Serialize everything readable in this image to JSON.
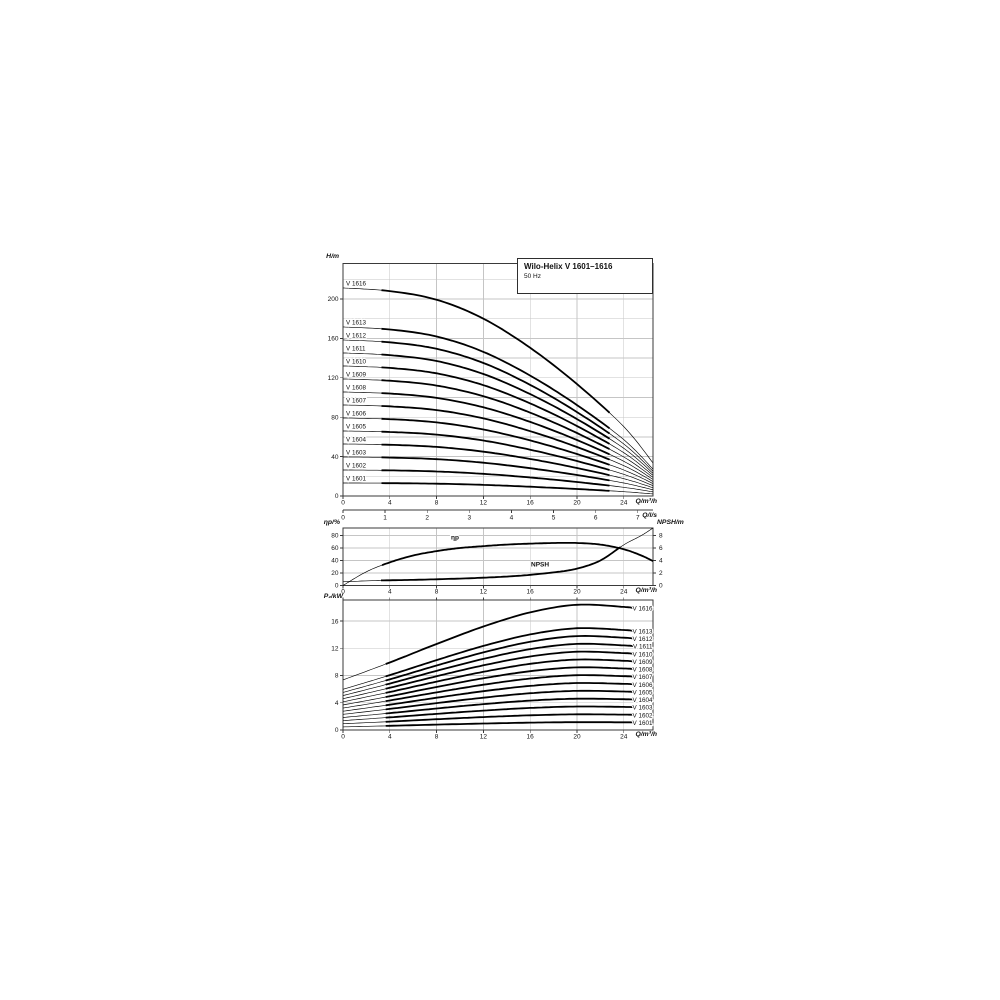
{
  "page": {
    "background": "#ffffff"
  },
  "colors": {
    "curve": "#000000",
    "grid": "#c5c5c5",
    "frame": "#3a3a3a",
    "text": "#111111"
  },
  "title_box": {
    "title": "Wilo-Helix V 1601–1616",
    "subtitle": "50 Hz"
  },
  "chart_data": [
    {
      "type": "line",
      "name": "head-vs-flow",
      "title": "Wilo-Helix V 1601–1616",
      "subtitle": "50 Hz",
      "xlabel": "Q/m³/h",
      "x2label": "Q/l/s",
      "ylabel": "H/m",
      "xlim": [
        0,
        26.5
      ],
      "ylim": [
        0,
        236
      ],
      "xticks": [
        0,
        4,
        8,
        12,
        16,
        20,
        24
      ],
      "x2ticks": [
        0,
        1,
        2,
        3,
        4,
        5,
        6,
        7
      ],
      "yticks": [
        0,
        40,
        80,
        120,
        160,
        200
      ],
      "ygrid_step": 20,
      "grid": true,
      "legend_position": "left-inline",
      "x": [
        0,
        4,
        8,
        12,
        16,
        20,
        24,
        26.5
      ],
      "series": [
        {
          "name": "V 1616",
          "values": [
            211.2,
            208.0,
            199.2,
            180.0,
            150.4,
            113.6,
            70.4,
            33.6
          ]
        },
        {
          "name": "V 1613",
          "values": [
            171.6,
            169.0,
            161.9,
            146.3,
            122.2,
            92.3,
            57.2,
            27.3
          ]
        },
        {
          "name": "V 1612",
          "values": [
            158.4,
            156.0,
            149.4,
            135.0,
            112.8,
            85.2,
            52.8,
            25.2
          ]
        },
        {
          "name": "V 1611",
          "values": [
            145.2,
            143.0,
            137.0,
            123.8,
            103.4,
            78.1,
            48.4,
            23.1
          ]
        },
        {
          "name": "V 1610",
          "values": [
            132.0,
            130.0,
            124.5,
            112.5,
            94.0,
            71.0,
            44.0,
            21.0
          ]
        },
        {
          "name": "V 1609",
          "values": [
            118.8,
            117.0,
            112.1,
            101.3,
            84.6,
            63.9,
            39.6,
            18.9
          ]
        },
        {
          "name": "V 1608",
          "values": [
            105.6,
            104.0,
            99.6,
            90.0,
            75.2,
            56.8,
            35.2,
            16.8
          ]
        },
        {
          "name": "V 1607",
          "values": [
            92.4,
            91.0,
            87.2,
            78.8,
            65.8,
            49.7,
            30.8,
            14.7
          ]
        },
        {
          "name": "V 1606",
          "values": [
            79.2,
            78.0,
            74.7,
            67.5,
            56.4,
            42.6,
            26.4,
            12.6
          ]
        },
        {
          "name": "V 1605",
          "values": [
            66.0,
            65.0,
            62.3,
            56.3,
            47.0,
            35.5,
            22.0,
            10.5
          ]
        },
        {
          "name": "V 1604",
          "values": [
            52.8,
            52.0,
            49.8,
            45.0,
            37.6,
            28.4,
            17.6,
            8.4
          ]
        },
        {
          "name": "V 1603",
          "values": [
            39.6,
            39.0,
            37.4,
            33.8,
            28.2,
            21.3,
            13.2,
            6.3
          ]
        },
        {
          "name": "V 1602",
          "values": [
            26.4,
            26.0,
            24.9,
            22.5,
            18.8,
            14.2,
            8.8,
            4.2
          ]
        },
        {
          "name": "V 1601",
          "values": [
            13.2,
            13.0,
            12.5,
            11.3,
            9.4,
            7.1,
            4.4,
            2.1
          ]
        }
      ]
    },
    {
      "type": "line",
      "name": "efficiency-and-npsh",
      "xlabel": "Q/m³/h",
      "ylabel": "ηp/%",
      "y2label": "NPSH/m",
      "xlim": [
        0,
        26.5
      ],
      "ylim": [
        0,
        92
      ],
      "y2lim": [
        0,
        9.2
      ],
      "xticks": [
        0,
        4,
        8,
        12,
        16,
        20,
        24
      ],
      "yticks": [
        0,
        20,
        40,
        60,
        80
      ],
      "y2ticks": [
        0,
        2,
        4,
        6,
        8
      ],
      "grid": true,
      "series": [
        {
          "name": "ηp",
          "axis": "left",
          "x": [
            0,
            2,
            4,
            6,
            8,
            10,
            12,
            14,
            16,
            18,
            20,
            22,
            24,
            25.5,
            26.5
          ],
          "values": [
            0,
            22,
            37,
            48,
            55,
            60,
            63,
            65.5,
            67,
            68,
            68,
            65.5,
            58,
            48,
            39
          ]
        },
        {
          "name": "NPSH",
          "axis": "right",
          "x": [
            0,
            3,
            6,
            9,
            12,
            15,
            18,
            20,
            22,
            24,
            25.5,
            26.5
          ],
          "values": [
            0.6,
            0.8,
            0.9,
            1.05,
            1.25,
            1.55,
            2.1,
            2.7,
            4.0,
            6.5,
            8.0,
            9.2
          ]
        }
      ]
    },
    {
      "type": "line",
      "name": "power-vs-flow",
      "xlabel": "Q/m³/h",
      "ylabel": "P₂/kW",
      "xlim": [
        0,
        26.5
      ],
      "ylim": [
        0,
        19.1
      ],
      "xticks": [
        0,
        4,
        8,
        12,
        16,
        20,
        24
      ],
      "yticks": [
        0,
        4,
        8,
        12,
        16
      ],
      "grid": true,
      "legend_position": "right-inline",
      "x": [
        0,
        4,
        8,
        12,
        16,
        20,
        24,
        24.8
      ],
      "series": [
        {
          "name": "V 1616",
          "values": [
            7.36,
            9.92,
            12.64,
            15.2,
            17.28,
            18.4,
            18.08,
            17.92
          ]
        },
        {
          "name": "V 1613",
          "values": [
            5.98,
            8.06,
            10.27,
            12.35,
            14.04,
            14.95,
            14.69,
            14.56
          ]
        },
        {
          "name": "V 1612",
          "values": [
            5.52,
            7.44,
            9.48,
            11.4,
            12.96,
            13.8,
            13.56,
            13.44
          ]
        },
        {
          "name": "V 1611",
          "values": [
            5.06,
            6.82,
            8.69,
            10.45,
            11.88,
            12.65,
            12.43,
            12.32
          ]
        },
        {
          "name": "V 1610",
          "values": [
            4.6,
            6.2,
            7.9,
            9.5,
            10.8,
            11.5,
            11.3,
            11.2
          ]
        },
        {
          "name": "V 1609",
          "values": [
            4.14,
            5.58,
            7.11,
            8.55,
            9.72,
            10.35,
            10.17,
            10.08
          ]
        },
        {
          "name": "V 1608",
          "values": [
            3.68,
            4.96,
            6.32,
            7.6,
            8.64,
            9.2,
            9.04,
            8.96
          ]
        },
        {
          "name": "V 1607",
          "values": [
            3.22,
            4.34,
            5.53,
            6.65,
            7.56,
            8.05,
            7.91,
            7.84
          ]
        },
        {
          "name": "V 1606",
          "values": [
            2.76,
            3.72,
            4.74,
            5.7,
            6.48,
            6.9,
            6.78,
            6.72
          ]
        },
        {
          "name": "V 1605",
          "values": [
            2.3,
            3.1,
            3.95,
            4.75,
            5.4,
            5.75,
            5.65,
            5.6
          ]
        },
        {
          "name": "V 1604",
          "values": [
            1.84,
            2.48,
            3.16,
            3.8,
            4.32,
            4.6,
            4.52,
            4.48
          ]
        },
        {
          "name": "V 1603",
          "values": [
            1.38,
            1.86,
            2.37,
            2.85,
            3.24,
            3.45,
            3.39,
            3.36
          ]
        },
        {
          "name": "V 1602",
          "values": [
            0.92,
            1.24,
            1.58,
            1.9,
            2.16,
            2.3,
            2.26,
            2.24
          ]
        },
        {
          "name": "V 1601",
          "values": [
            0.46,
            0.62,
            0.79,
            0.95,
            1.08,
            1.15,
            1.13,
            1.12
          ]
        }
      ]
    }
  ]
}
